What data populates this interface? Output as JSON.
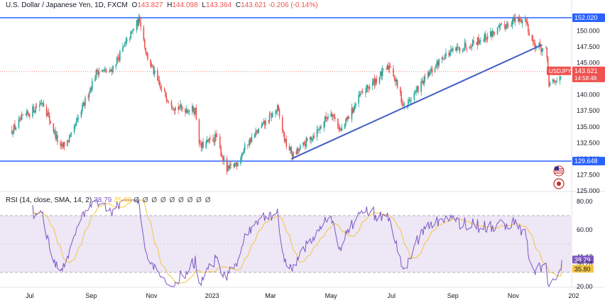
{
  "header": {
    "symbol_title": "U.S. Dollar / Japanese Yen, 1D, FXCM",
    "open_label": "O",
    "open": "143.827",
    "high_label": "H",
    "high": "144.098",
    "low_label": "L",
    "low": "143.364",
    "close_label": "C",
    "close": "143.621",
    "change": "-0.206 (-0.14%)"
  },
  "colors": {
    "up": "#26a69a",
    "down": "#ef5350",
    "level_line": "#2962ff",
    "trend_line": "#3f5fc4",
    "rsi_line": "#7e57c2",
    "rsi_sma": "#f5c542",
    "rsi_band": "#ede7f6"
  },
  "rsi_header": {
    "label": "RSI (14, close, SMA, 14, 2)",
    "value": "38.79",
    "sma_value": "35.80",
    "eye_icons": "Ø Ø Ø Ø Ø Ø Ø Ø Ø"
  },
  "icons": [
    "us-flag-icon",
    "japan-flag-icon"
  ],
  "chart_data": [
    {
      "type": "candlestick",
      "title": "U.S. Dollar / Japanese Yen, 1D, FXCM",
      "x_ticks": [
        "Jul",
        "Sep",
        "Nov",
        "2023",
        "Mar",
        "May",
        "Jul",
        "Sep",
        "Nov",
        "202"
      ],
      "y_ticks": [
        125.0,
        127.5,
        130.0,
        132.5,
        135.0,
        137.5,
        140.0,
        142.5,
        145.0,
        147.5,
        150.0
      ],
      "y_tick_labels": [
        "125.000",
        "127.500",
        "130.000",
        "132.500",
        "135.000",
        "137.500",
        "140.000",
        "142.500",
        "145.000",
        "147.500",
        "150.000"
      ],
      "ylim": [
        124.9,
        152.8
      ],
      "horizontal_levels": [
        {
          "value": 152.02,
          "label": "152.020"
        },
        {
          "value": 129.648,
          "label": "129.648"
        }
      ],
      "trend_line": {
        "from": [
          "2023-03-22",
          130.0
        ],
        "to": [
          "2023-11-30",
          147.8
        ]
      },
      "last_price": {
        "label": "USDJPY",
        "value": "143.621",
        "countdown": "14:58:48"
      },
      "anchors": [
        [
          "2022-06-13",
          134.4
        ],
        [
          "2022-06-22",
          136.0
        ],
        [
          "2022-07-14",
          139.0
        ],
        [
          "2022-08-01",
          131.6
        ],
        [
          "2022-08-12",
          133.5
        ],
        [
          "2022-09-07",
          143.8
        ],
        [
          "2022-09-20",
          143.5
        ],
        [
          "2022-10-20",
          151.9
        ],
        [
          "2022-10-27",
          146.2
        ],
        [
          "2022-11-10",
          140.9
        ],
        [
          "2022-11-25",
          138.0
        ],
        [
          "2022-12-15",
          137.6
        ],
        [
          "2022-12-20",
          131.8
        ],
        [
          "2023-01-05",
          133.4
        ],
        [
          "2023-01-16",
          128.2
        ],
        [
          "2023-01-26",
          129.4
        ],
        [
          "2023-02-06",
          132.5
        ],
        [
          "2023-03-08",
          137.8
        ],
        [
          "2023-03-16",
          132.5
        ],
        [
          "2023-03-24",
          130.5
        ],
        [
          "2023-04-18",
          134.5
        ],
        [
          "2023-05-01",
          137.5
        ],
        [
          "2023-05-11",
          134.3
        ],
        [
          "2023-05-31",
          140.0
        ],
        [
          "2023-06-30",
          144.6
        ],
        [
          "2023-07-14",
          138.0
        ],
        [
          "2023-07-28",
          141.0
        ],
        [
          "2023-08-22",
          146.0
        ],
        [
          "2023-09-15",
          147.8
        ],
        [
          "2023-10-04",
          149.0
        ],
        [
          "2023-10-31",
          151.5
        ],
        [
          "2023-11-13",
          151.8
        ],
        [
          "2023-11-21",
          148.0
        ],
        [
          "2023-12-04",
          146.8
        ],
        [
          "2023-12-07",
          141.7
        ],
        [
          "2023-12-14",
          141.9
        ],
        [
          "2023-12-20",
          143.6
        ]
      ]
    },
    {
      "type": "line",
      "title": "RSI (14, close, SMA, 14, 2)",
      "y_tick_labels": [
        "80.00",
        "60.00",
        "41.12",
        "36.28",
        "20.00"
      ],
      "bands": [
        70,
        30
      ],
      "ylim": [
        20,
        81
      ],
      "series": [
        {
          "values_description": "RSI",
          "last": 38.79
        },
        {
          "values_description": "SMA",
          "last": 35.8
        }
      ],
      "labels_right": [
        "41.12",
        "38.79",
        "36.28",
        "35.80"
      ]
    }
  ]
}
